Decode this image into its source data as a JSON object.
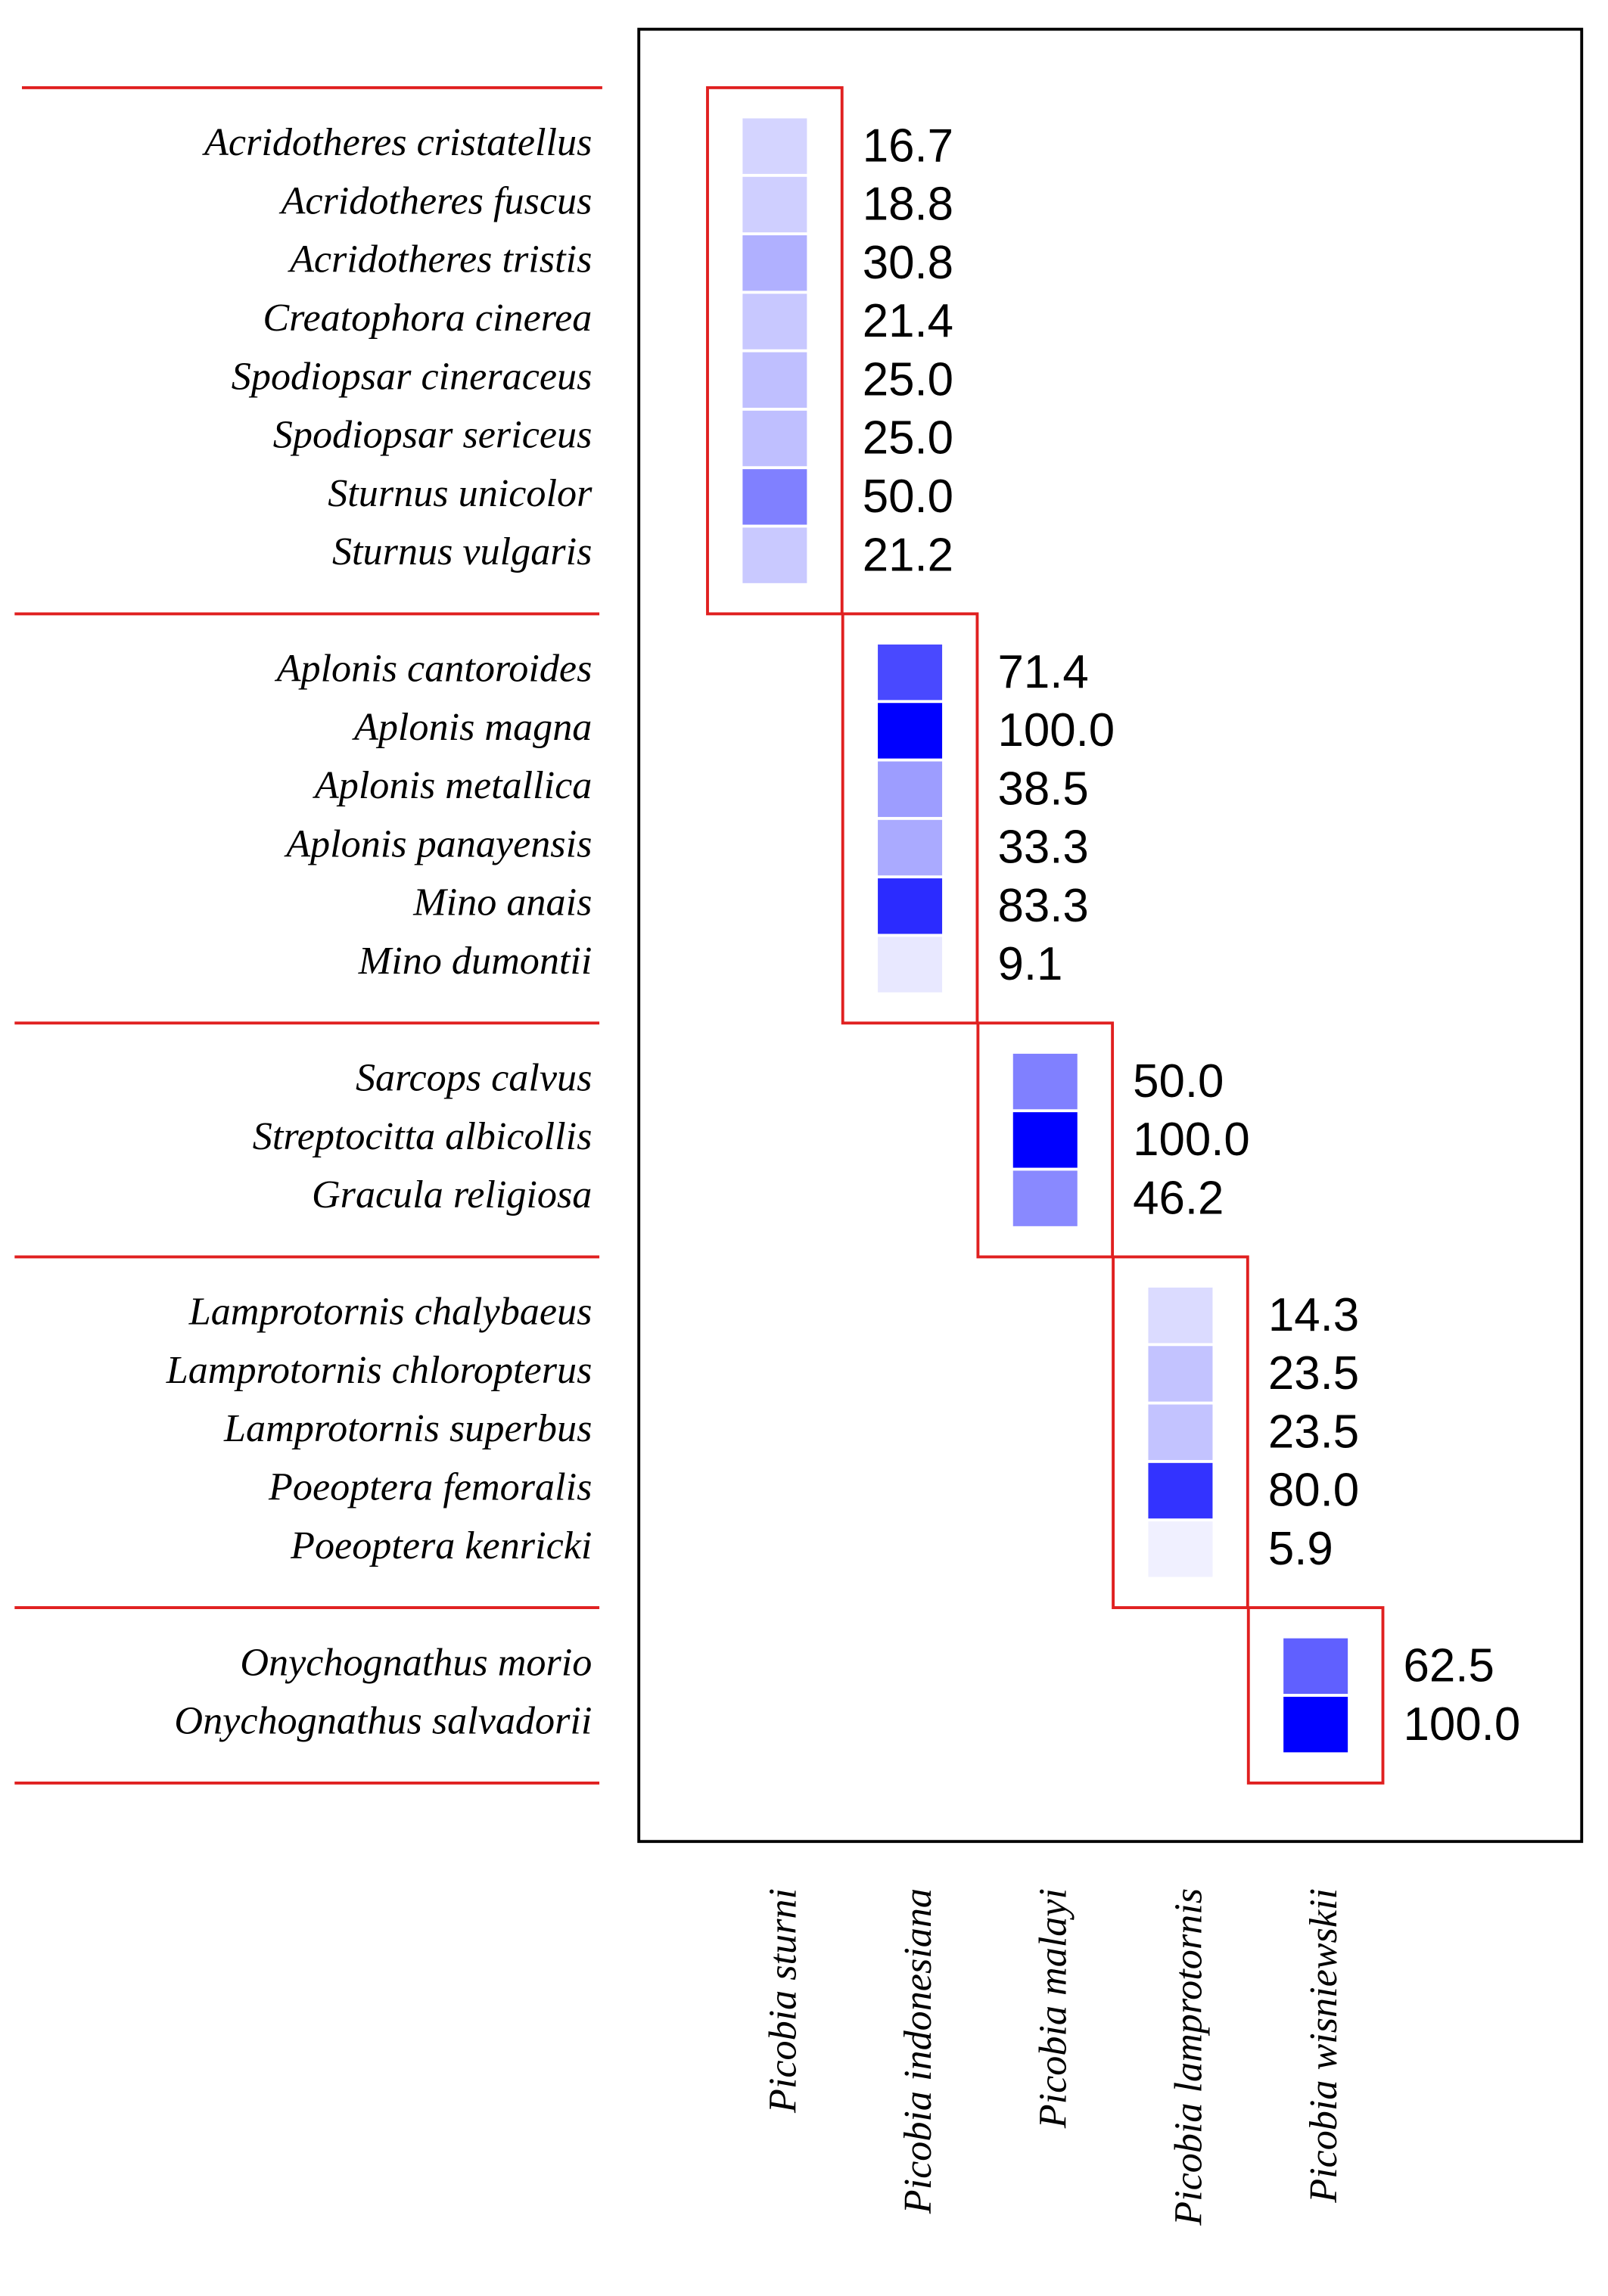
{
  "chart_data": {
    "type": "heatmap",
    "columns": [
      "Picobia sturni",
      "Picobia indonesiana",
      "Picobia malayi",
      "Picobia lamprotornis",
      "Picobia wisniewskii"
    ],
    "color": "#0000ff",
    "groups": [
      {
        "rows": [
          "Acridotheres cristatellus",
          "Acridotheres fuscus",
          "Acridotheres tristis",
          "Creatophora cinerea",
          "Spodiopsar cineraceus",
          "Spodiopsar sericeus",
          "Sturnus unicolor",
          "Sturnus vulgaris"
        ],
        "values": [
          16.7,
          18.8,
          30.8,
          21.4,
          25,
          25,
          50,
          21.2
        ],
        "value_labels": [
          "16.7",
          "18.8",
          "30.8",
          "21.4",
          "25.0",
          "25.0",
          "50.0",
          "21.2"
        ]
      },
      {
        "rows": [
          "Aplonis cantoroides",
          "Aplonis magna",
          "Aplonis metallica",
          "Aplonis panayensis",
          "Mino anais",
          "Mino dumontii"
        ],
        "values": [
          71.4,
          100,
          38.5,
          33.3,
          83.3,
          9.1
        ],
        "value_labels": [
          "71.4",
          "100.0",
          "38.5",
          "33.3",
          "83.3",
          "9.1"
        ]
      },
      {
        "rows": [
          "Sarcops calvus",
          "Streptocitta albicollis",
          "Gracula religiosa"
        ],
        "values": [
          50,
          100,
          46.2
        ],
        "value_labels": [
          "50.0",
          "100.0",
          "46.2"
        ]
      },
      {
        "rows": [
          "Lamprotornis chalybaeus",
          "Lamprotornis chloropterus",
          "Lamprotornis superbus",
          "Poeoptera femoralis",
          "Poeoptera kenricki"
        ],
        "values": [
          14.3,
          23.5,
          23.5,
          80,
          5.9
        ],
        "value_labels": [
          "14.3",
          "23.5",
          "23.5",
          "80.0",
          "5.9"
        ]
      },
      {
        "rows": [
          "Onychognathus morio",
          "Onychognathus salvadorii"
        ],
        "values": [
          62.5,
          100
        ],
        "value_labels": [
          "62.5",
          "100.0"
        ]
      }
    ]
  }
}
